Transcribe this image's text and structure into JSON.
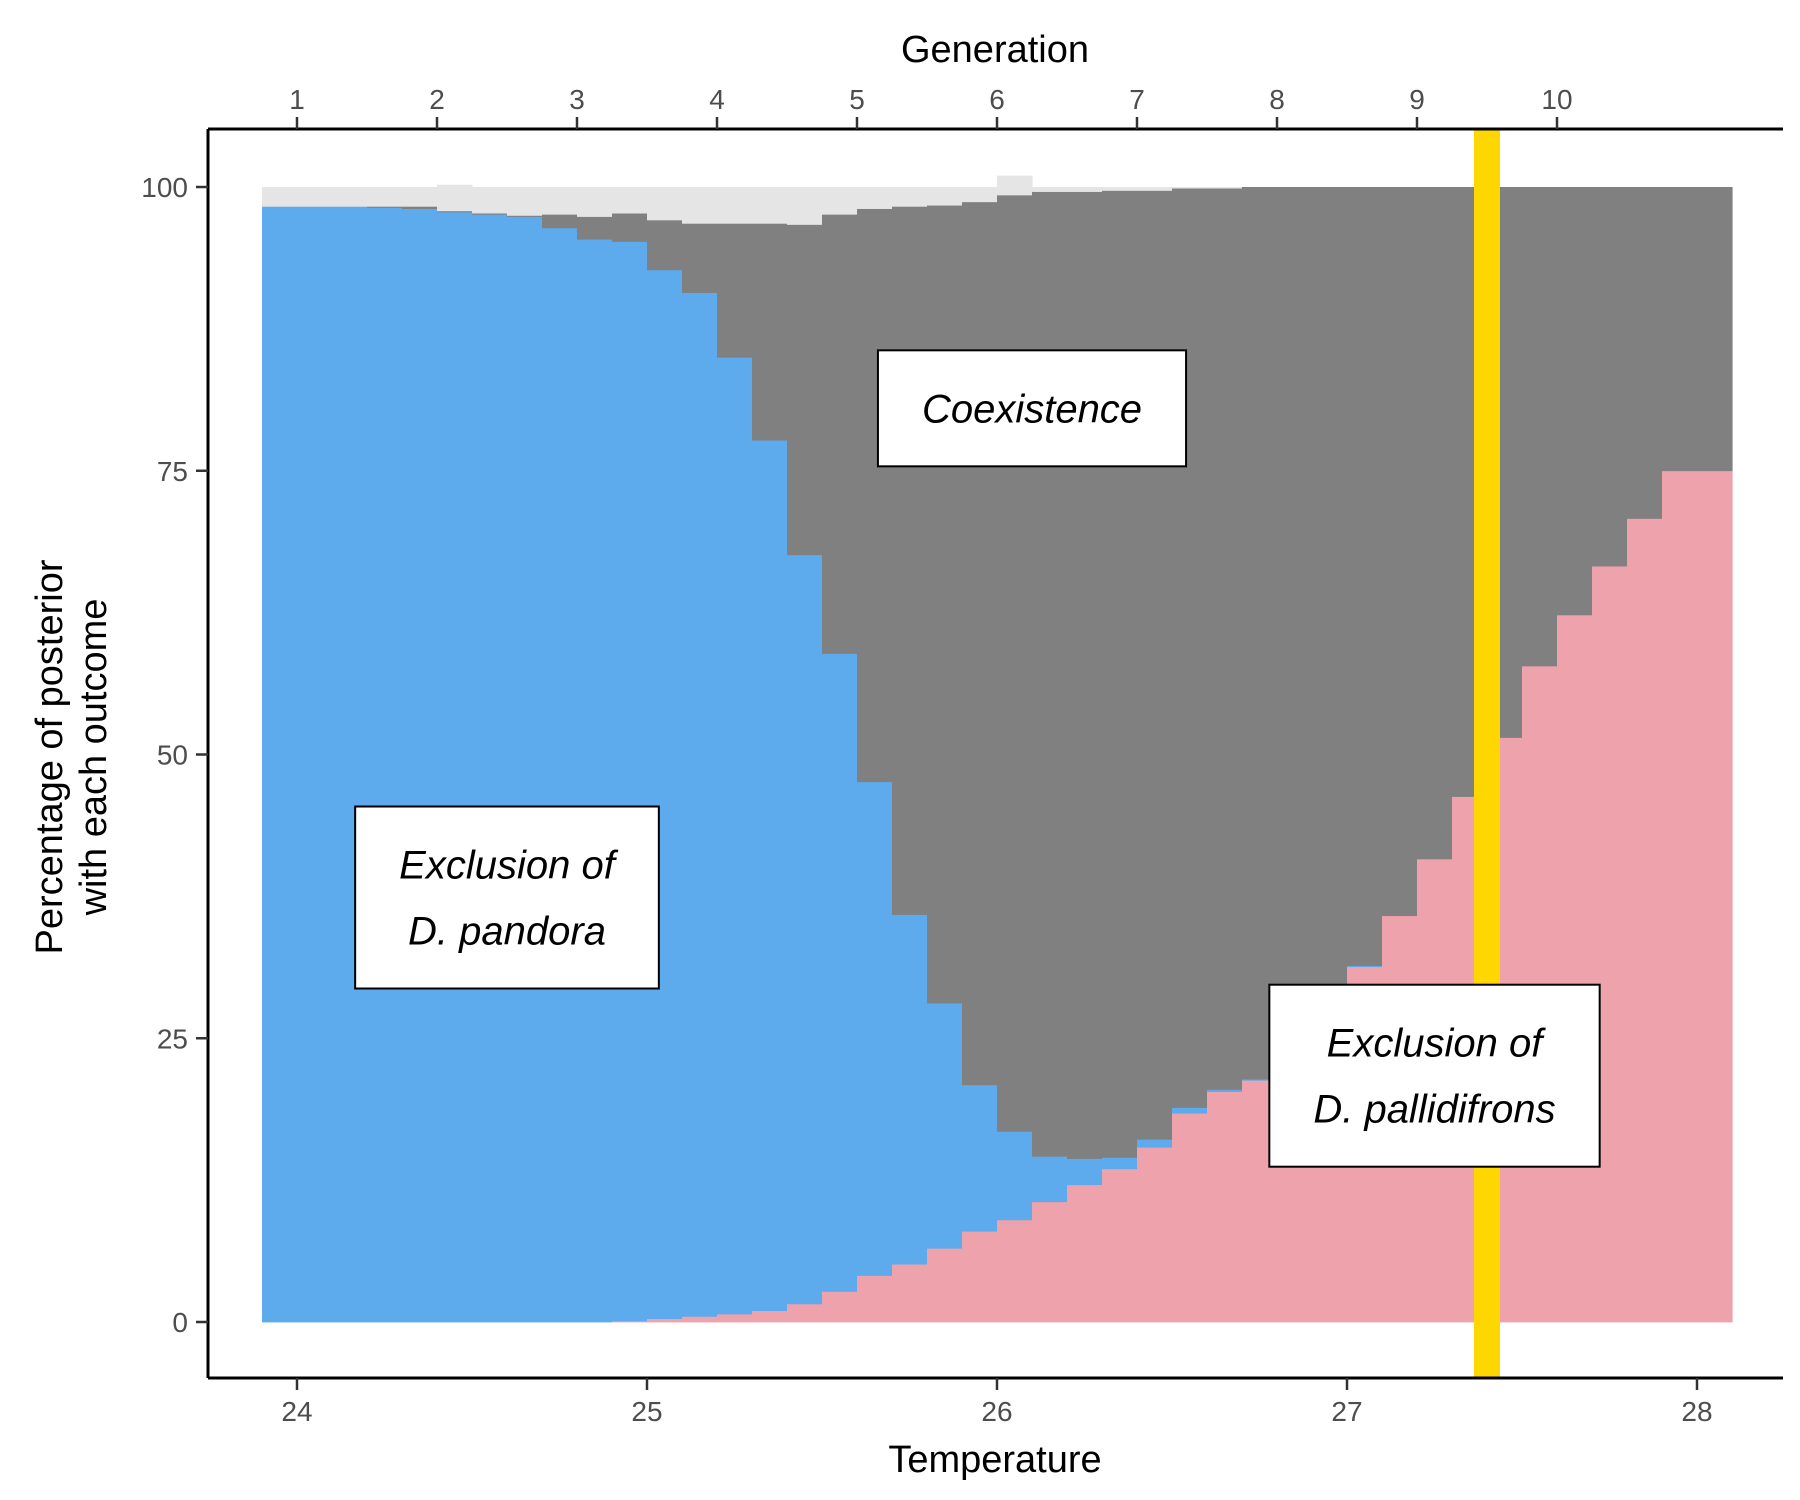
{
  "chart_data": {
    "type": "area",
    "xlabel": "Temperature",
    "ylabel_lines": [
      "Percentage of posterior",
      "with each outcome"
    ],
    "top_axis_label": "Generation",
    "xlim": [
      24,
      28
    ],
    "ylim": [
      0,
      100
    ],
    "x_ticks": [
      24,
      25,
      26,
      27,
      28
    ],
    "y_ticks": [
      0,
      25,
      50,
      75,
      100
    ],
    "top_ticks": [
      {
        "label": "1",
        "temperature": 24.0
      },
      {
        "label": "2",
        "temperature": 24.4
      },
      {
        "label": "3",
        "temperature": 24.8
      },
      {
        "label": "4",
        "temperature": 25.2
      },
      {
        "label": "5",
        "temperature": 25.6
      },
      {
        "label": "6",
        "temperature": 26.0
      },
      {
        "label": "7",
        "temperature": 26.4
      },
      {
        "label": "8",
        "temperature": 26.8
      },
      {
        "label": "9",
        "temperature": 27.2
      },
      {
        "label": "10",
        "temperature": 27.6
      }
    ],
    "bin_width": 0.1,
    "temperature": [
      23.95,
      24.05,
      24.15,
      24.25,
      24.35,
      24.45,
      24.55,
      24.65,
      24.75,
      24.85,
      24.95,
      25.05,
      25.15,
      25.25,
      25.35,
      25.45,
      25.55,
      25.65,
      25.75,
      25.85,
      25.95,
      26.05,
      26.15,
      26.25,
      26.35,
      26.45,
      26.55,
      26.65,
      26.75,
      26.85,
      26.95,
      27.05,
      27.15,
      27.25,
      27.35,
      27.45,
      27.55,
      27.65,
      27.75,
      27.85,
      27.95,
      28.05
    ],
    "series": [
      {
        "name": "pallidifrons_excluded",
        "color": "#edA2AC",
        "values": [
          0,
          0,
          0,
          0,
          0,
          0,
          0,
          0,
          0,
          0,
          0.1,
          0.3,
          0.5,
          0.7,
          1.0,
          1.6,
          2.7,
          4.1,
          5.1,
          6.5,
          8.0,
          9.0,
          10.6,
          12.1,
          13.5,
          15.4,
          18.4,
          20.3,
          21.3,
          23.3,
          27.3,
          31.3,
          35.8,
          40.8,
          46.3,
          51.5,
          57.8,
          62.3,
          66.6,
          70.8,
          75.0,
          75.0
        ]
      },
      {
        "name": "pandora_excluded",
        "color": "#5DABEC",
        "values": [
          98.3,
          98.3,
          98.3,
          98.2,
          98.1,
          97.8,
          97.6,
          97.4,
          96.4,
          95.4,
          95.1,
          92.4,
          90.2,
          84.3,
          76.7,
          66.0,
          56.2,
          43.5,
          30.8,
          21.6,
          12.9,
          7.8,
          4.0,
          2.3,
          1.0,
          0.7,
          0.5,
          0.2,
          0.1,
          0.1,
          0.1,
          0.1,
          0.0,
          0.0,
          0.0,
          0.0,
          0.0,
          0.0,
          0.0,
          0.0,
          0.0,
          0.0
        ]
      },
      {
        "name": "coexistence",
        "color": "#808080",
        "values": [
          0,
          0,
          0,
          0.1,
          0.2,
          0.1,
          0.1,
          0.1,
          1.2,
          2.0,
          2.5,
          4.4,
          6.1,
          11.8,
          19.1,
          29.1,
          38.7,
          50.5,
          62.4,
          70.3,
          77.8,
          82.5,
          85.0,
          85.2,
          85.2,
          83.6,
          81.0,
          79.4,
          78.6,
          76.6,
          72.6,
          68.6,
          64.2,
          59.2,
          53.7,
          48.5,
          42.2,
          37.7,
          33.4,
          29.2,
          25.0,
          25.0
        ]
      },
      {
        "name": "unresolved",
        "color": "#E5E5E5",
        "values": [
          1.7,
          1.7,
          1.7,
          1.7,
          1.7,
          2.3,
          2.3,
          2.5,
          2.4,
          2.6,
          2.3,
          2.9,
          3.2,
          3.2,
          3.2,
          3.3,
          2.4,
          1.9,
          1.7,
          1.6,
          1.3,
          1.7,
          0.4,
          0.4,
          0.3,
          0.3,
          0.1,
          0.1,
          0.0,
          0.0,
          0.0,
          0.0,
          0.0,
          0.0,
          0.0,
          0.0,
          0.0,
          0.0,
          0.0,
          0.0,
          0.0,
          0.0
        ]
      }
    ],
    "vline": {
      "temperature": 27.4,
      "color": "#FFD700"
    },
    "annotations": [
      {
        "lines": [
          "Coexistence"
        ],
        "x": 26.1,
        "y": 80.5
      },
      {
        "lines": [
          "Exclusion of",
          "D. pandora"
        ],
        "x": 24.6,
        "y": 37.4
      },
      {
        "lines": [
          "Exclusion of",
          "D. pallidifrons"
        ],
        "x": 27.25,
        "y": 21.7
      }
    ]
  }
}
